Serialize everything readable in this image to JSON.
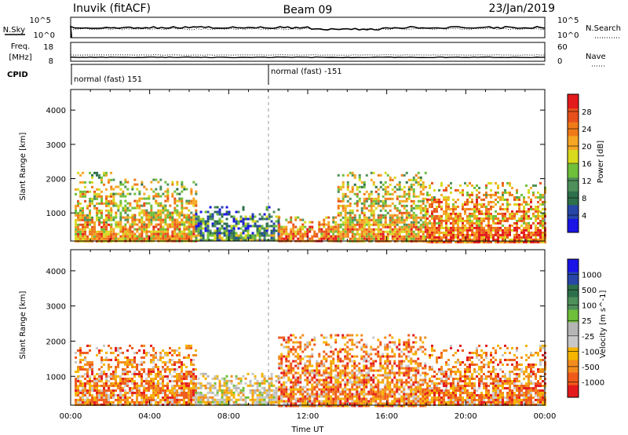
{
  "header": {
    "station": "Inuvik (fitACF)",
    "beam": "Beam 09",
    "date": "23/Jan/2019"
  },
  "top_panels": {
    "nsky_label": "N.Sky",
    "nsky_ticks": [
      "10^5",
      "10^0"
    ],
    "nsearch_label": "N.Search",
    "nsearch_ticks": [
      "10^5",
      "10^0"
    ],
    "freq_label": "Freq.",
    "freq_unit": "[MHz]",
    "freq_ticks": [
      "18",
      "8"
    ],
    "nave_label": "Nave",
    "nave_ticks": [
      "60",
      "0"
    ],
    "cpid_label": "CPID",
    "cpid_segments": [
      {
        "label": "normal (fast) 151",
        "start_hour": 0
      },
      {
        "label": "normal (fast) -151",
        "start_hour": 10
      }
    ]
  },
  "chart_data": [
    {
      "type": "heatmap",
      "ylabel": "Slant Range [km]",
      "yticks": [
        "4000",
        "3000",
        "2000",
        "1000"
      ],
      "ylim": [
        180,
        4600
      ],
      "xlabel": "",
      "xlim": [
        0,
        24
      ],
      "colorbar": {
        "label": "Power [dB]",
        "ticks": [
          "28",
          "24",
          "20",
          "16",
          "12",
          "8",
          "4"
        ],
        "range": [
          0,
          30
        ]
      },
      "echo_regions_hours": [
        {
          "start": 0.2,
          "end": 2.0,
          "range_min": 200,
          "range_max": 2200,
          "dominant": 24
        },
        {
          "start": 2.0,
          "end": 6.3,
          "range_min": 200,
          "range_max": 2000,
          "dominant": 22
        },
        {
          "start": 6.3,
          "end": 10.5,
          "range_min": 180,
          "range_max": 1200,
          "dominant": 12
        },
        {
          "start": 10.5,
          "end": 13.5,
          "range_min": 180,
          "range_max": 900,
          "dominant": 28
        },
        {
          "start": 13.5,
          "end": 18.0,
          "range_min": 180,
          "range_max": 2200,
          "dominant": 24
        },
        {
          "start": 18.0,
          "end": 24.0,
          "range_min": 180,
          "range_max": 1900,
          "dominant": 26
        }
      ]
    },
    {
      "type": "heatmap",
      "ylabel": "Slant Range [km]",
      "yticks": [
        "4000",
        "3000",
        "2000",
        "1000"
      ],
      "ylim": [
        180,
        4600
      ],
      "xlabel": "Time UT",
      "xticks": [
        "00:00",
        "04:00",
        "08:00",
        "12:00",
        "16:00",
        "20:00",
        "00:00"
      ],
      "xlim": [
        0,
        24
      ],
      "colorbar": {
        "label": "Velocity [m s^-1]",
        "ticks": [
          "1000",
          "500",
          "100",
          "25",
          "-25",
          "-100",
          "-500",
          "-1000"
        ]
      },
      "echo_regions_hours": [
        {
          "start": 0.2,
          "end": 6.3,
          "range_min": 200,
          "range_max": 1900,
          "dominant": -100
        },
        {
          "start": 6.3,
          "end": 10.5,
          "range_min": 180,
          "range_max": 1100,
          "dominant": 25
        },
        {
          "start": 10.5,
          "end": 18.0,
          "range_min": 180,
          "range_max": 2200,
          "dominant": -100
        },
        {
          "start": 18.0,
          "end": 24.0,
          "range_min": 180,
          "range_max": 1900,
          "dominant": -100
        }
      ]
    }
  ],
  "colors": {
    "power_scale": [
      "#1a14e6",
      "#2746a8",
      "#2d6f4a",
      "#4e8f5a",
      "#6fbf3a",
      "#d9d91e",
      "#f5a623",
      "#f07a18",
      "#e8501b",
      "#e31a1c"
    ],
    "velocity_scale": [
      "#e31a1c",
      "#f05a1a",
      "#f28c1e",
      "#f5b400",
      "#c8c8c8",
      "#b5b5b5",
      "#6fbf3a",
      "#4e8f5a",
      "#2d6f4a",
      "#2746a8",
      "#1a14e6"
    ]
  }
}
